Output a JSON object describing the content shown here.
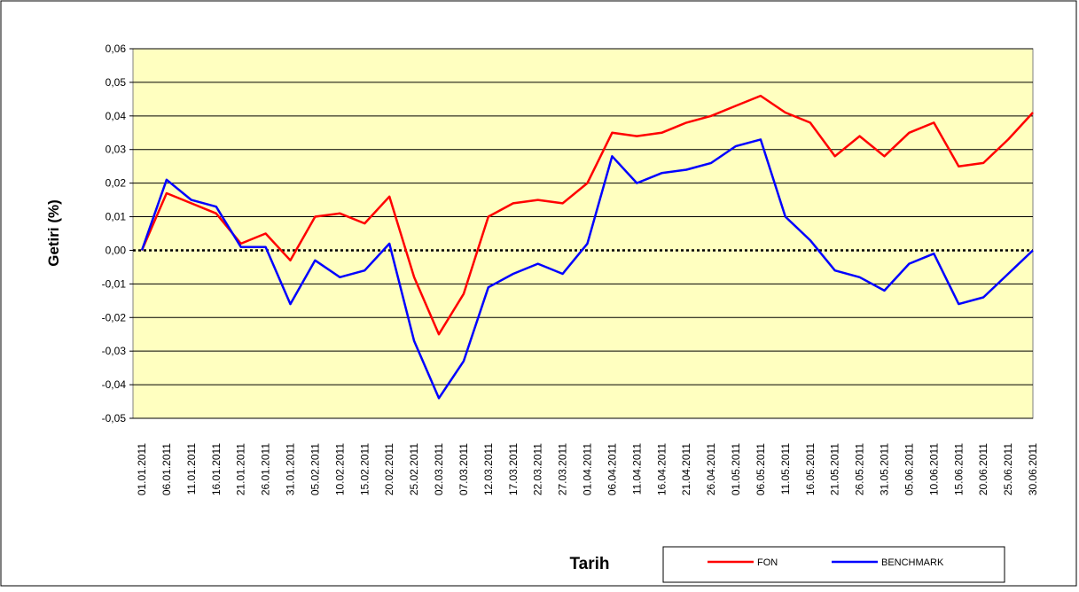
{
  "chart_data": {
    "type": "line",
    "x_label": "Tarih",
    "y_label": "Getiri (%)",
    "categories": [
      "01.01.2011",
      "06.01.2011",
      "11.01.2011",
      "16.01.2011",
      "21.01.2011",
      "26.01.2011",
      "31.01.2011",
      "05.02.2011",
      "10.02.2011",
      "15.02.2011",
      "20.02.2011",
      "25.02.2011",
      "02.03.2011",
      "07.03.2011",
      "12.03.2011",
      "17.03.2011",
      "22.03.2011",
      "27.03.2011",
      "01.04.2011",
      "06.04.2011",
      "11.04.2011",
      "16.04.2011",
      "21.04.2011",
      "26.04.2011",
      "01.05.2011",
      "06.05.2011",
      "11.05.2011",
      "16.05.2011",
      "21.05.2011",
      "26.05.2011",
      "31.05.2011",
      "05.06.2011",
      "10.06.2011",
      "15.06.2011",
      "20.06.2011",
      "25.06.2011",
      "30.06.2011"
    ],
    "series": [
      {
        "name": "FON",
        "color": "#ff0000",
        "values": [
          0,
          0.017,
          0.014,
          0.011,
          0.002,
          0.005,
          -0.003,
          0.01,
          0.011,
          0.008,
          0.016,
          -0.008,
          -0.025,
          -0.013,
          0.01,
          0.014,
          0.015,
          0.014,
          0.02,
          0.035,
          0.034,
          0.035,
          0.038,
          0.04,
          0.043,
          0.046,
          0.041,
          0.038,
          0.028,
          0.034,
          0.028,
          0.035,
          0.038,
          0.025,
          0.026,
          0.033,
          0.041
        ]
      },
      {
        "name": "BENCHMARK",
        "color": "#0000ff",
        "values": [
          0,
          0.021,
          0.015,
          0.013,
          0.001,
          0.001,
          -0.016,
          -0.003,
          -0.008,
          -0.006,
          0.002,
          -0.027,
          -0.044,
          -0.033,
          -0.011,
          -0.007,
          -0.004,
          -0.007,
          0.002,
          0.028,
          0.02,
          0.023,
          0.024,
          0.026,
          0.031,
          0.033,
          0.01,
          0.003,
          -0.006,
          -0.008,
          -0.012,
          -0.004,
          -0.001,
          -0.016,
          -0.014,
          -0.007,
          0
        ]
      }
    ],
    "ylim": [
      -0.05,
      0.06
    ],
    "yticks": [
      {
        "value": -0.05,
        "label": "-0,05"
      },
      {
        "value": -0.04,
        "label": "-0,04"
      },
      {
        "value": -0.03,
        "label": "-0,03"
      },
      {
        "value": -0.02,
        "label": "-0,02"
      },
      {
        "value": -0.01,
        "label": "-0,01"
      },
      {
        "value": 0,
        "label": "0,00"
      },
      {
        "value": 0.01,
        "label": "0,01"
      },
      {
        "value": 0.02,
        "label": "0,02"
      },
      {
        "value": 0.03,
        "label": "0,03"
      },
      {
        "value": 0.04,
        "label": "0,04"
      },
      {
        "value": 0.05,
        "label": "0,05"
      },
      {
        "value": 0.06,
        "label": "0,06"
      }
    ],
    "grid": true
  }
}
